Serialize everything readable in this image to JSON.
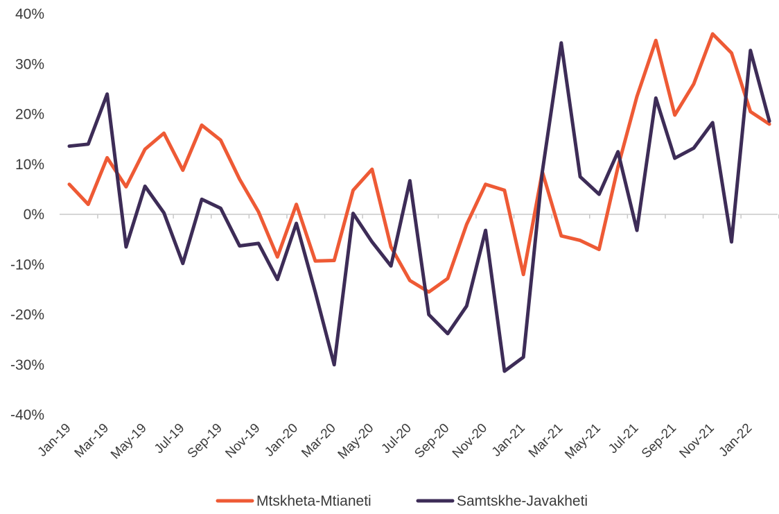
{
  "chart_data": {
    "type": "line",
    "categories": [
      "Jan-19",
      "Feb-19",
      "Mar-19",
      "Apr-19",
      "May-19",
      "Jun-19",
      "Jul-19",
      "Aug-19",
      "Sep-19",
      "Oct-19",
      "Nov-19",
      "Dec-19",
      "Jan-20",
      "Feb-20",
      "Mar-20",
      "Apr-20",
      "May-20",
      "Jun-20",
      "Jul-20",
      "Aug-20",
      "Sep-20",
      "Oct-20",
      "Nov-20",
      "Dec-20",
      "Jan-21",
      "Feb-21",
      "Mar-21",
      "Apr-21",
      "May-21",
      "Jun-21",
      "Jul-21",
      "Aug-21",
      "Sep-21",
      "Oct-21",
      "Nov-21",
      "Dec-21",
      "Jan-22",
      "Feb-22"
    ],
    "x_tick_labels": [
      "Jan-19",
      "Mar-19",
      "May-19",
      "Jul-19",
      "Sep-19",
      "Nov-19",
      "Jan-20",
      "Mar-20",
      "May-20",
      "Jul-20",
      "Sep-20",
      "Nov-20",
      "Jan-21",
      "Mar-21",
      "May-21",
      "Jul-21",
      "Sep-21",
      "Nov-21",
      "Jan-22"
    ],
    "y_ticks": [
      40,
      30,
      20,
      10,
      0,
      -10,
      -20,
      -30,
      -40
    ],
    "y_tick_labels": [
      "40%",
      "30%",
      "20%",
      "10%",
      "0%",
      "-10%",
      "-20%",
      "-30%",
      "-40%"
    ],
    "ylim": [
      -40,
      40
    ],
    "grid": false,
    "legend_position": "bottom-center",
    "series": [
      {
        "name": "Mtskheta-Mtianeti",
        "color": "#ee5a35",
        "values": [
          6,
          2,
          11.3,
          5.5,
          13,
          16.2,
          8.8,
          17.8,
          14.8,
          7,
          0.5,
          -8.5,
          2,
          -9.3,
          -9.2,
          4.8,
          9,
          -6.5,
          -13.2,
          -15.5,
          -12.8,
          -2,
          6,
          4.8,
          -12,
          8.5,
          -4.3,
          -5.2,
          -7,
          9.5,
          23.5,
          34.7,
          19.8,
          26,
          36,
          32.2,
          20.5,
          18
        ]
      },
      {
        "name": "Samtskhe-Javakheti",
        "color": "#3d2c57",
        "values": [
          13.6,
          14,
          24,
          -6.5,
          5.6,
          0.3,
          -9.8,
          3,
          1.2,
          -6.3,
          -5.8,
          -13,
          -1.8,
          -15.5,
          -30,
          0.2,
          -5.5,
          -10.3,
          6.7,
          -20,
          -23.8,
          -18.3,
          -3.2,
          -31.3,
          -28.5,
          8.5,
          34.2,
          7.5,
          4,
          12.5,
          -3.2,
          23.2,
          11.2,
          13.2,
          18.3,
          -5.5,
          32.7,
          18.6
        ]
      }
    ]
  }
}
